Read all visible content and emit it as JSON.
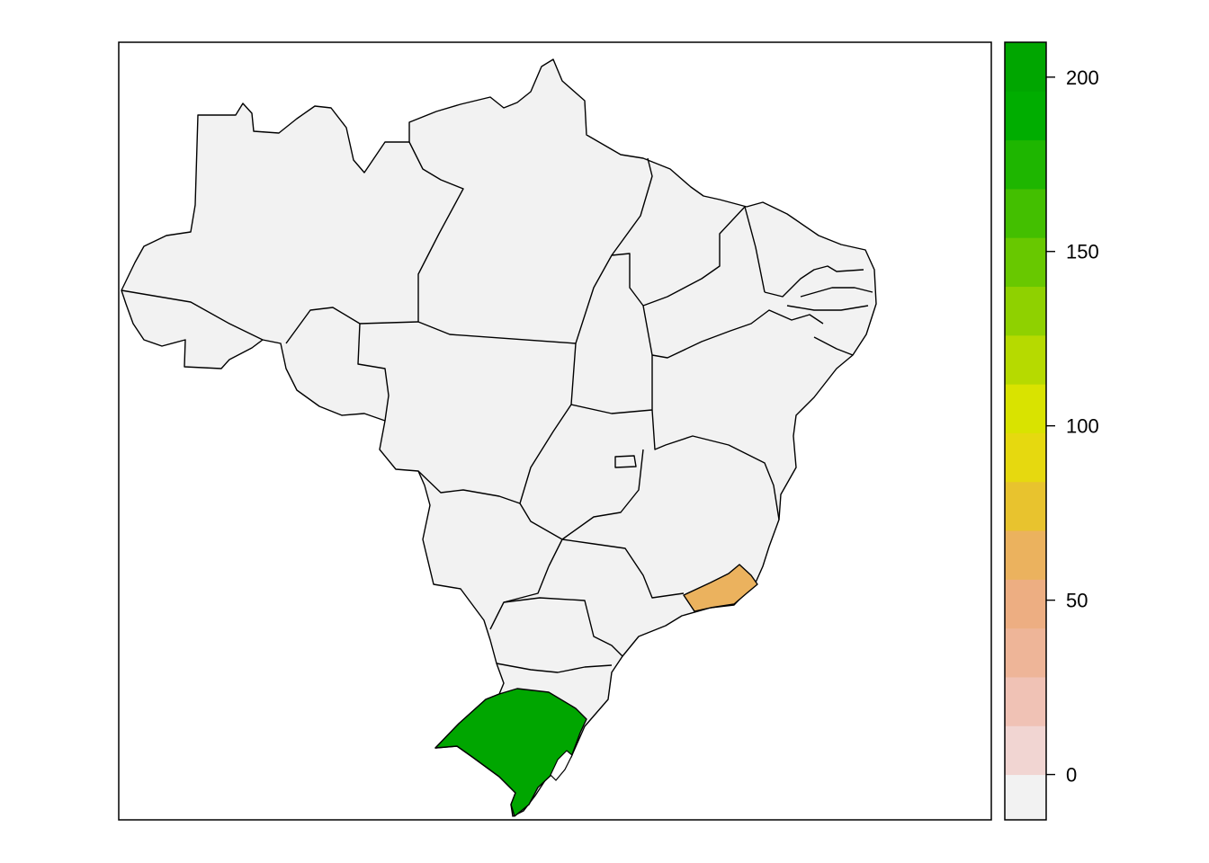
{
  "map": {
    "base_color": "#f2f2f2",
    "outline_color": "#000000",
    "highlighted_regions": [
      {
        "value": 200,
        "color": "#00a600"
      },
      {
        "value": 65,
        "color": "#ebb25e"
      }
    ]
  },
  "legend": {
    "range": [
      -13,
      210
    ],
    "bins": [
      {
        "from": -13,
        "to": 0,
        "color": "#f2f2f2"
      },
      {
        "from": 0,
        "to": 14,
        "color": "#f1d5d2"
      },
      {
        "from": 14,
        "to": 28,
        "color": "#f0c2b5"
      },
      {
        "from": 28,
        "to": 42,
        "color": "#eeb598"
      },
      {
        "from": 42,
        "to": 56,
        "color": "#edae82"
      },
      {
        "from": 56,
        "to": 70,
        "color": "#ebb25e"
      },
      {
        "from": 70,
        "to": 84,
        "color": "#e8c32e"
      },
      {
        "from": 84,
        "to": 98,
        "color": "#e6d90f"
      },
      {
        "from": 98,
        "to": 112,
        "color": "#d9e300"
      },
      {
        "from": 112,
        "to": 126,
        "color": "#b6da00"
      },
      {
        "from": 126,
        "to": 140,
        "color": "#8fd100"
      },
      {
        "from": 140,
        "to": 154,
        "color": "#68c800"
      },
      {
        "from": 154,
        "to": 168,
        "color": "#43bf00"
      },
      {
        "from": 168,
        "to": 182,
        "color": "#1eb600"
      },
      {
        "from": 182,
        "to": 196,
        "color": "#00ad00"
      },
      {
        "from": 196,
        "to": 210,
        "color": "#00a600"
      }
    ],
    "ticks": [
      {
        "value": 0,
        "label": "0"
      },
      {
        "value": 50,
        "label": "50"
      },
      {
        "value": 100,
        "label": "100"
      },
      {
        "value": 150,
        "label": "150"
      },
      {
        "value": 200,
        "label": "200"
      }
    ]
  }
}
